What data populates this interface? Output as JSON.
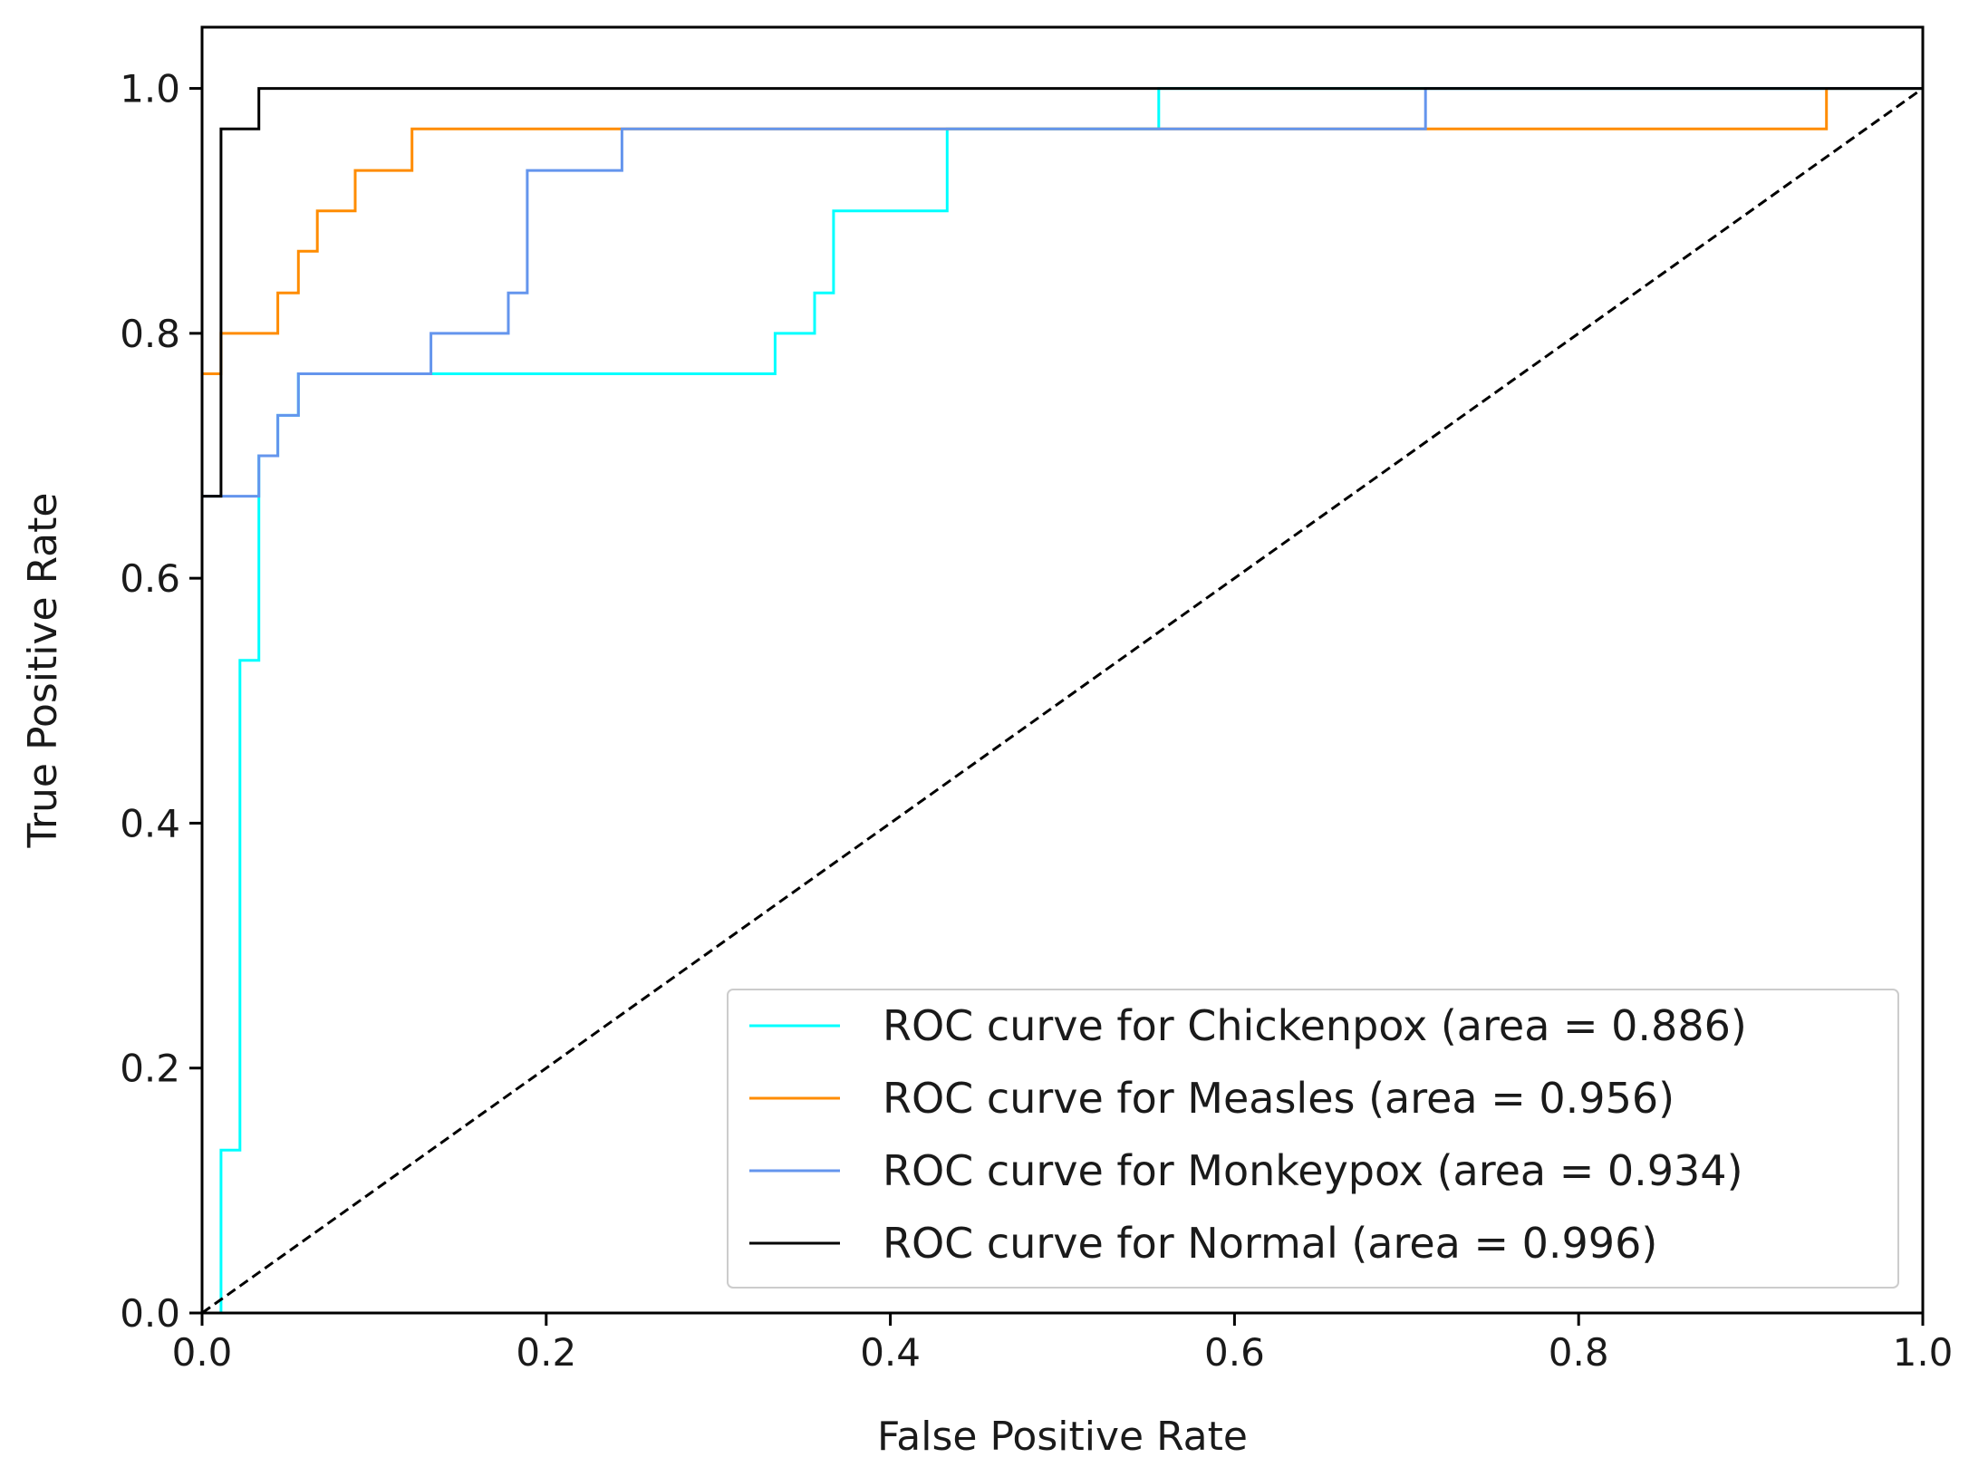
{
  "chart_data": {
    "type": "line",
    "title": "",
    "xlabel": "False Positive Rate",
    "ylabel": "True Positive Rate",
    "xlim": [
      0.0,
      1.0
    ],
    "ylim": [
      0.0,
      1.05
    ],
    "xticks": [
      "0.0",
      "0.2",
      "0.4",
      "0.6",
      "0.8",
      "1.0"
    ],
    "yticks": [
      "0.0",
      "0.2",
      "0.4",
      "0.6",
      "0.8",
      "1.0"
    ],
    "grid": false,
    "legend_position": "lower-right",
    "series": [
      {
        "name": "ROC curve for Chickenpox (area = 0.886)",
        "color": "#00ffff",
        "x": [
          0.0,
          0.011,
          0.011,
          0.022,
          0.022,
          0.033,
          0.033,
          0.044,
          0.044,
          0.056,
          0.056,
          0.133,
          0.133,
          0.333,
          0.333,
          0.356,
          0.356,
          0.367,
          0.367,
          0.433,
          0.433,
          0.556,
          0.556,
          1.0
        ],
        "y": [
          0.0,
          0.0,
          0.133,
          0.133,
          0.533,
          0.533,
          0.7,
          0.7,
          0.733,
          0.733,
          0.767,
          0.767,
          0.767,
          0.767,
          0.8,
          0.8,
          0.833,
          0.833,
          0.9,
          0.9,
          0.967,
          0.967,
          1.0,
          1.0
        ]
      },
      {
        "name": "ROC curve for Measles (area = 0.956)",
        "color": "#ff8c00",
        "x": [
          0.0,
          0.0,
          0.011,
          0.011,
          0.044,
          0.044,
          0.056,
          0.056,
          0.067,
          0.067,
          0.089,
          0.089,
          0.122,
          0.122,
          0.944,
          0.944,
          1.0
        ],
        "y": [
          0.667,
          0.767,
          0.767,
          0.8,
          0.8,
          0.833,
          0.833,
          0.867,
          0.867,
          0.9,
          0.9,
          0.933,
          0.933,
          0.967,
          0.967,
          1.0,
          1.0
        ]
      },
      {
        "name": "ROC curve for Monkeypox (area = 0.934)",
        "color": "#6495ed",
        "x": [
          0.0,
          0.0,
          0.033,
          0.033,
          0.044,
          0.044,
          0.056,
          0.056,
          0.133,
          0.133,
          0.178,
          0.178,
          0.189,
          0.189,
          0.244,
          0.244,
          0.711,
          0.711,
          1.0
        ],
        "y": [
          0.0,
          0.667,
          0.667,
          0.7,
          0.7,
          0.733,
          0.733,
          0.767,
          0.767,
          0.8,
          0.8,
          0.833,
          0.833,
          0.933,
          0.933,
          0.967,
          0.967,
          1.0,
          1.0
        ]
      },
      {
        "name": "ROC curve for Normal (area = 0.996)",
        "color": "#000000",
        "x": [
          0.0,
          0.0,
          0.011,
          0.011,
          0.033,
          0.033,
          1.0
        ],
        "y": [
          0.0,
          0.667,
          0.667,
          0.967,
          0.967,
          1.0,
          1.0
        ]
      }
    ],
    "reference_line": {
      "x": [
        0.0,
        1.0
      ],
      "y": [
        0.0,
        1.0
      ],
      "color": "#000000",
      "style": "dashed"
    }
  }
}
